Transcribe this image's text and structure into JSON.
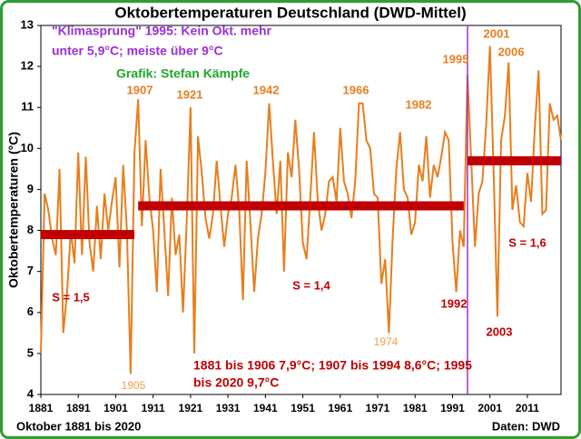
{
  "chart_data": {
    "type": "line",
    "title": "Oktobertemperaturen Deutschland (DWD-Mittel)",
    "y_label": "Oktobertemperaturen (°C)",
    "footer_left": "Oktober 1881 bis 2020",
    "footer_right": "Daten: DWD",
    "x": [
      1881,
      1882,
      1883,
      1884,
      1885,
      1886,
      1887,
      1888,
      1889,
      1890,
      1891,
      1892,
      1893,
      1894,
      1895,
      1896,
      1897,
      1898,
      1899,
      1900,
      1901,
      1902,
      1903,
      1904,
      1905,
      1906,
      1907,
      1908,
      1909,
      1910,
      1911,
      1912,
      1913,
      1914,
      1915,
      1916,
      1917,
      1918,
      1919,
      1920,
      1921,
      1922,
      1923,
      1924,
      1925,
      1926,
      1927,
      1928,
      1929,
      1930,
      1931,
      1932,
      1933,
      1934,
      1935,
      1936,
      1937,
      1938,
      1939,
      1940,
      1941,
      1942,
      1943,
      1944,
      1945,
      1946,
      1947,
      1948,
      1949,
      1950,
      1951,
      1952,
      1953,
      1954,
      1955,
      1956,
      1957,
      1958,
      1959,
      1960,
      1961,
      1962,
      1963,
      1964,
      1965,
      1966,
      1967,
      1968,
      1969,
      1970,
      1971,
      1972,
      1973,
      1974,
      1975,
      1976,
      1977,
      1978,
      1979,
      1980,
      1981,
      1982,
      1983,
      1984,
      1985,
      1986,
      1987,
      1988,
      1989,
      1990,
      1991,
      1992,
      1993,
      1994,
      1995,
      1996,
      1997,
      1998,
      1999,
      2000,
      2001,
      2002,
      2003,
      2004,
      2005,
      2006,
      2007,
      2008,
      2009,
      2010,
      2011,
      2012,
      2013,
      2014,
      2015,
      2016,
      2017,
      2018,
      2019,
      2020
    ],
    "series": [
      {
        "name": "Oktobertemperatur",
        "color": "#e87e1e",
        "values": [
          5.0,
          8.9,
          8.5,
          7.8,
          7.4,
          9.5,
          5.5,
          6.5,
          8.0,
          7.2,
          9.9,
          7.4,
          9.8,
          7.7,
          7.0,
          8.6,
          7.3,
          8.9,
          8.0,
          8.7,
          9.3,
          7.1,
          9.6,
          8.0,
          4.5,
          9.9,
          11.2,
          8.1,
          10.2,
          8.8,
          8.0,
          6.5,
          9.5,
          8.0,
          6.4,
          8.8,
          7.4,
          7.9,
          6.0,
          8.3,
          11.0,
          5.0,
          10.3,
          9.4,
          8.3,
          7.8,
          8.4,
          9.7,
          8.6,
          7.6,
          8.4,
          8.8,
          9.6,
          8.5,
          6.3,
          9.7,
          8.2,
          6.5,
          7.8,
          8.4,
          9.4,
          11.1,
          9.7,
          8.4,
          9.7,
          7.0,
          9.9,
          9.3,
          10.7,
          9.5,
          7.7,
          7.3,
          8.8,
          10.4,
          8.7,
          8.0,
          8.4,
          9.2,
          9.3,
          8.7,
          10.5,
          9.2,
          8.9,
          8.3,
          9.2,
          11.1,
          11.1,
          10.2,
          10.0,
          8.9,
          8.8,
          6.7,
          7.3,
          5.5,
          7.8,
          9.5,
          10.4,
          9.0,
          8.8,
          7.9,
          8.2,
          9.6,
          9.2,
          10.3,
          8.8,
          9.6,
          9.3,
          9.8,
          10.4,
          10.2,
          7.7,
          6.5,
          8.0,
          7.6,
          11.8,
          9.7,
          7.6,
          8.9,
          9.2,
          10.6,
          12.5,
          9.4,
          5.9,
          10.2,
          10.8,
          12.1,
          8.5,
          9.1,
          8.2,
          8.1,
          9.4,
          8.7,
          10.5,
          11.9,
          8.4,
          8.5,
          11.1,
          10.7,
          10.8,
          10.2
        ]
      }
    ],
    "mean_lines": [
      {
        "x": [
          1881,
          1906
        ],
        "value": 7.9,
        "color": "#c00000"
      },
      {
        "x": [
          1907,
          1994
        ],
        "value": 8.6,
        "color": "#c00000"
      },
      {
        "x": [
          1995,
          2020
        ],
        "value": 9.7,
        "color": "#c00000"
      }
    ],
    "vline": {
      "x": 1995,
      "color": "#9b30d9"
    },
    "xlim": [
      1881,
      2020
    ],
    "ylim": [
      4,
      13
    ],
    "xticks": [
      1881,
      1891,
      1901,
      1911,
      1921,
      1931,
      1941,
      1951,
      1961,
      1971,
      1981,
      1991,
      2001,
      2011
    ],
    "yticks": [
      4,
      5,
      6,
      7,
      8,
      9,
      10,
      11,
      12,
      13
    ],
    "grid": false,
    "text_blocks": [
      {
        "text": "\"Klimasprung\" 1995: Kein Okt. mehr",
        "color": "#9b30d9"
      },
      {
        "text": "unter 5,9°C; meiste über 9°C",
        "color": "#9b30d9"
      },
      {
        "text": "Grafik: Stefan Kämpfe",
        "color": "#1fa82a"
      },
      {
        "text": "1881 bis 1906 7,9°C; 1907 bis 1994 8,6°C; 1995",
        "color": "#c00000"
      },
      {
        "text": "bis 2020 9,7°C",
        "color": "#c00000"
      }
    ],
    "annotations": [
      {
        "text": "1907",
        "color": "#e87e1e"
      },
      {
        "text": "1921",
        "color": "#e87e1e"
      },
      {
        "text": "1942",
        "color": "#e87e1e"
      },
      {
        "text": "1966",
        "color": "#e87e1e"
      },
      {
        "text": "1982",
        "color": "#e87e1e"
      },
      {
        "text": "1995",
        "color": "#e87e1e"
      },
      {
        "text": "2001",
        "color": "#e87e1e"
      },
      {
        "text": "2006",
        "color": "#e87e1e"
      },
      {
        "text": "1905",
        "color": "#f0a050"
      },
      {
        "text": "1974",
        "color": "#f0a050"
      },
      {
        "text": "1992",
        "color": "#c00000"
      },
      {
        "text": "2003",
        "color": "#c00000"
      },
      {
        "text": "S = 1,5",
        "color": "#c00000"
      },
      {
        "text": "S = 1,4",
        "color": "#c00000"
      },
      {
        "text": "S = 1,6",
        "color": "#c00000"
      }
    ]
  }
}
